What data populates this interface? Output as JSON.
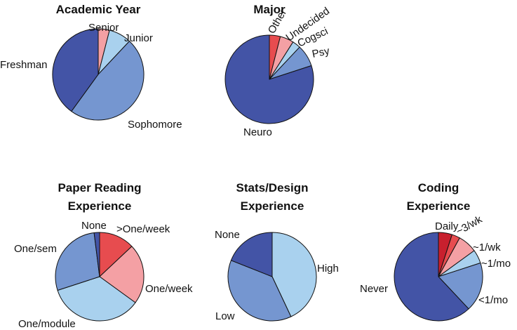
{
  "chart_data": [
    {
      "type": "pie",
      "title": [
        "Academic Year"
      ],
      "slices": [
        {
          "label": "Senior",
          "value": 4,
          "color": "#f4a0a4"
        },
        {
          "label": "Junior",
          "value": 8,
          "color": "#a9d1ee"
        },
        {
          "label": "Sophomore",
          "value": 48,
          "color": "#7596d0"
        },
        {
          "label": "Freshman",
          "value": 40,
          "color": "#4354a6"
        }
      ]
    },
    {
      "type": "pie",
      "title": [
        "Major"
      ],
      "slices": [
        {
          "label": "Other",
          "value": 4,
          "color": "#e74c4f"
        },
        {
          "label": "Undecided",
          "value": 5,
          "color": "#f4a0a4"
        },
        {
          "label": "Cogsci",
          "value": 3,
          "color": "#a9d1ee"
        },
        {
          "label": "Psy",
          "value": 8,
          "color": "#7596d0"
        },
        {
          "label": "Neuro",
          "value": 80,
          "color": "#4354a6"
        }
      ]
    },
    {
      "type": "pie",
      "title": [
        "Paper Reading",
        "Experience"
      ],
      "slices": [
        {
          "label": ">One/week",
          "value": 13,
          "color": "#e74c4f"
        },
        {
          "label": "One/week",
          "value": 22,
          "color": "#f4a0a4"
        },
        {
          "label": "One/module",
          "value": 35,
          "color": "#a9d1ee"
        },
        {
          "label": "One/sem",
          "value": 28,
          "color": "#7596d0"
        },
        {
          "label": "None",
          "value": 2,
          "color": "#4354a6"
        }
      ]
    },
    {
      "type": "pie",
      "title": [
        "Stats/Design",
        "Experience"
      ],
      "slices": [
        {
          "label": "High",
          "value": 43,
          "color": "#a9d1ee"
        },
        {
          "label": "Low",
          "value": 38,
          "color": "#7596d0"
        },
        {
          "label": "None",
          "value": 19,
          "color": "#4354a6"
        }
      ]
    },
    {
      "type": "pie",
      "title": [
        "Coding",
        "Experience"
      ],
      "slices": [
        {
          "label": "Daily",
          "value": 5,
          "color": "#c8202e"
        },
        {
          "label": "~3/wk",
          "value": 3,
          "color": "#e74c4f"
        },
        {
          "label": "~1/wk",
          "value": 7,
          "color": "#f4a0a4"
        },
        {
          "label": "~1/mo",
          "value": 5,
          "color": "#a9d1ee"
        },
        {
          "label": "<1/mo",
          "value": 18,
          "color": "#7596d0"
        },
        {
          "label": "Never",
          "value": 62,
          "color": "#4354a6"
        }
      ]
    }
  ]
}
